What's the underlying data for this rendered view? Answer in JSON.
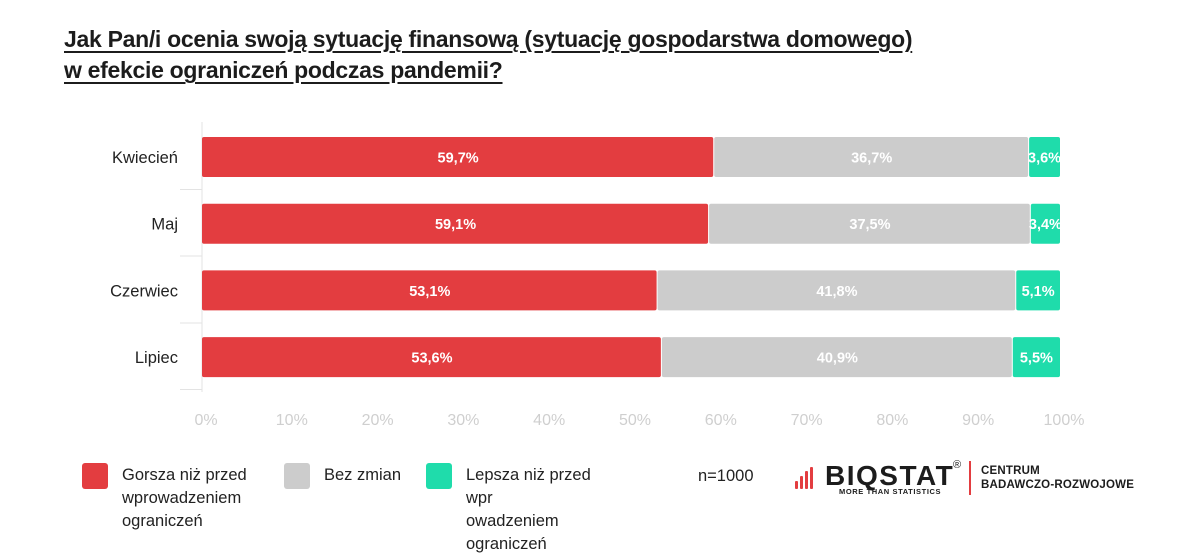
{
  "title": {
    "line1": "Jak Pan/i ocenia swoją sytuację finansową (sytuację gospodarstwa domowego)",
    "line2": "w efekcie ograniczeń podczas pandemii?"
  },
  "chart_data": {
    "type": "bar",
    "orientation": "horizontal",
    "stacked": true,
    "categories": [
      "Kwiecień",
      "Maj",
      "Czerwiec",
      "Lipiec"
    ],
    "series": [
      {
        "name": "Gorsza niż przed\nwprowadzeniem\nograniczeń",
        "values": [
          59.7,
          59.1,
          53.1,
          53.6
        ],
        "labels": [
          "59,7%",
          "59,1%",
          "53,1%",
          "53,6%"
        ],
        "color": "#e33d40"
      },
      {
        "name": "Bez zmian",
        "values": [
          36.7,
          37.5,
          41.8,
          40.9
        ],
        "labels": [
          "36,7%",
          "37,5%",
          "41,8%",
          "40,9%"
        ],
        "color": "#cccccc"
      },
      {
        "name": "Lepsza niż przed\nwpr\nowadzeniem\nograniczeń",
        "values": [
          3.6,
          3.4,
          5.1,
          5.5
        ],
        "labels": [
          "3,6%",
          "3,4%",
          "5,1%",
          "5,5%"
        ],
        "color": "#1fdcab"
      }
    ],
    "xlim": [
      0,
      100
    ],
    "x_ticks": [
      "0%",
      "10%",
      "20%",
      "30%",
      "40%",
      "50%",
      "60%",
      "70%",
      "80%",
      "90%",
      "100%"
    ],
    "grid": false,
    "legend_position": "bottom-left"
  },
  "note": "n=1000",
  "logo": {
    "name": "BIQSTAT",
    "registered": "®",
    "tagline": "MORE THAN STATISTICS",
    "department": "CENTRUM\nBADAWCZO-ROZWOJOWE"
  },
  "colors": {
    "worse": "#e33d40",
    "unchanged": "#cccccc",
    "better": "#1fdcab",
    "tick_text": "#cfcfcf",
    "axis_line": "#e3e3e3"
  }
}
